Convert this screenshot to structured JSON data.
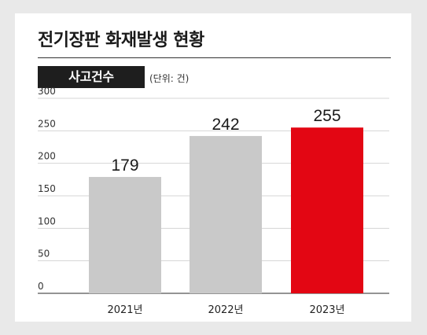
{
  "title": "전기장판 화재발생 현황",
  "badge": "사고건수",
  "unit": "(단위: 건)",
  "colors": {
    "bar_default": "#c9c9c9",
    "bar_highlight": "#e30613",
    "grid": "#d4d4d4",
    "text": "#1a1a1a"
  },
  "chart_data": {
    "type": "bar",
    "title": "전기장판 화재발생 현황",
    "ylabel": "사고건수",
    "unit": "(단위: 건)",
    "categories": [
      "2021년",
      "2022년",
      "2023년"
    ],
    "values": [
      179,
      242,
      255
    ],
    "value_labels": [
      "179",
      "242",
      "255"
    ],
    "highlight": [
      false,
      false,
      true
    ],
    "ylim": [
      0,
      300
    ],
    "yticks": [
      0,
      50,
      100,
      150,
      200,
      250,
      300
    ],
    "ytick_labels": [
      "0",
      "50",
      "100",
      "150",
      "200",
      "250",
      "300"
    ],
    "grid": true
  }
}
